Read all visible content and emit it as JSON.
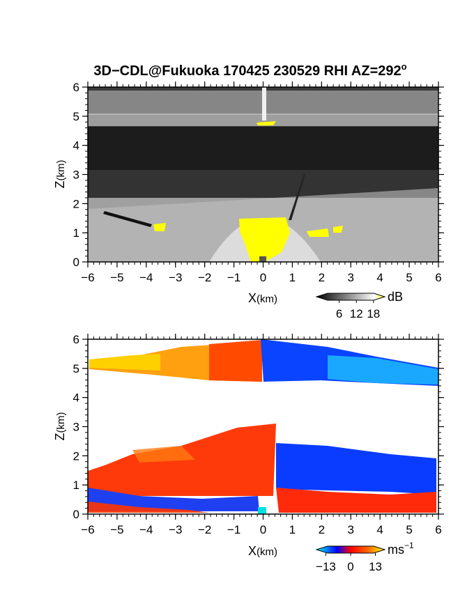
{
  "title": "3D−CDL@Fukuoka 170425 230529 RHI AZ=292",
  "title_sup": "o",
  "chart_data": [
    {
      "type": "heatmap",
      "quantity_unit": "dB",
      "xlabel_main": "X",
      "xlabel_unit": "(km)",
      "ylabel_main": "Z",
      "ylabel_unit": "(km)",
      "xlim": [
        -6,
        6
      ],
      "ylim": [
        0,
        6
      ],
      "x_ticks": [
        -6,
        -5,
        -4,
        -3,
        -2,
        -1,
        0,
        1,
        2,
        3,
        4,
        5,
        6
      ],
      "x_tick_labels": [
        "−6",
        "−5",
        "−4",
        "−3",
        "−2",
        "−1",
        "0",
        "1",
        "2",
        "3",
        "4",
        "5",
        "6"
      ],
      "y_ticks": [
        0,
        1,
        2,
        3,
        4,
        5,
        6
      ],
      "y_tick_labels": [
        "0",
        "1",
        "2",
        "3",
        "4",
        "5",
        "6"
      ],
      "colorbar": {
        "unit": "dB",
        "ticks": [
          6,
          12,
          18
        ],
        "tick_labels": [
          "6",
          "12",
          "18"
        ],
        "range": [
          0,
          20
        ],
        "colors": [
          "#000000",
          "#ffffff",
          "#ffff00"
        ]
      }
    },
    {
      "type": "heatmap",
      "quantity_unit": "ms⁻¹",
      "xlabel_main": "X",
      "xlabel_unit": "(km)",
      "ylabel_main": "Z",
      "ylabel_unit": "(km)",
      "xlim": [
        -6,
        6
      ],
      "ylim": [
        0,
        6
      ],
      "x_ticks": [
        -6,
        -5,
        -4,
        -3,
        -2,
        -1,
        0,
        1,
        2,
        3,
        4,
        5,
        6
      ],
      "x_tick_labels": [
        "−6",
        "−5",
        "−4",
        "−3",
        "−2",
        "−1",
        "0",
        "1",
        "2",
        "3",
        "4",
        "5",
        "6"
      ],
      "y_ticks": [
        0,
        1,
        2,
        3,
        4,
        5,
        6
      ],
      "y_tick_labels": [
        "0",
        "1",
        "2",
        "3",
        "4",
        "5",
        "6"
      ],
      "colorbar": {
        "unit_main": "ms",
        "unit_sup": "−1",
        "ticks": [
          -13,
          0,
          13
        ],
        "tick_labels": [
          "−13",
          "0",
          "13"
        ],
        "range": [
          -15,
          15
        ],
        "colors": [
          "#00ffff",
          "#0000ff",
          "#ff0000",
          "#ffff00"
        ]
      }
    }
  ]
}
